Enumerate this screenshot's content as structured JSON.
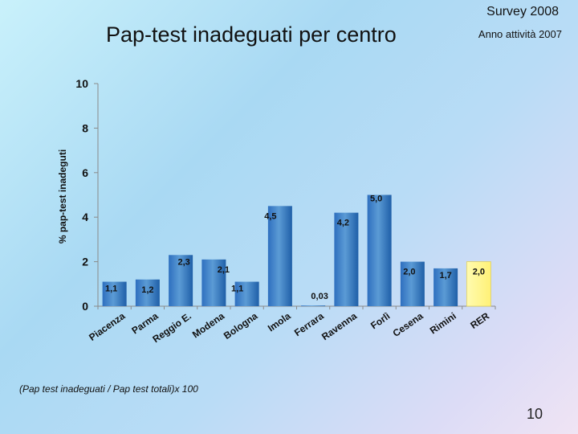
{
  "header": {
    "survey": "Survey 2008",
    "anno": "Anno attività 2007",
    "title": "Pap-test inadeguati per centro"
  },
  "footer": {
    "formula": "(Pap test inadeguati / Pap test totali)x 100",
    "page_number": "10"
  },
  "colors": {
    "bar_top": "#5b9bd5",
    "bar_bottom": "#1f5fa8",
    "highlight_bar": "#ffff99"
  },
  "chart_data": {
    "type": "bar",
    "title": "",
    "xlabel": "",
    "ylabel": "% pap-test inadeguti",
    "ylim": [
      0,
      10
    ],
    "yticks": [
      0,
      2,
      4,
      6,
      8,
      10
    ],
    "categories": [
      "Piacenza",
      "Parma",
      "Reggio E.",
      "Modena",
      "Bologna",
      "Imola",
      "Ferrara",
      "Ravenna",
      "Forlì",
      "Cesena",
      "Rimini",
      "RER"
    ],
    "values": [
      1.1,
      1.2,
      2.3,
      2.1,
      1.1,
      4.5,
      0.03,
      4.2,
      5.0,
      2.0,
      1.7,
      2.0
    ],
    "value_labels": [
      "1,1",
      "1,2",
      "2,3",
      "2,1",
      "1,1",
      "4,5",
      "0,03",
      "4,2",
      "5,0",
      "2,0",
      "1,7",
      "2,0"
    ],
    "highlight_category": "RER",
    "grid": false,
    "legend": "none"
  }
}
